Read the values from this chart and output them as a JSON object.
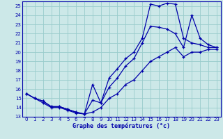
{
  "xlabel": "Graphe des températures (°c)",
  "bg_color": "#cce8e8",
  "grid_color": "#99cccc",
  "line_color": "#0000aa",
  "xlim": [
    -0.5,
    23.5
  ],
  "ylim": [
    13,
    25.5
  ],
  "yticks": [
    13,
    14,
    15,
    16,
    17,
    18,
    19,
    20,
    21,
    22,
    23,
    24,
    25
  ],
  "xticks": [
    0,
    1,
    2,
    3,
    4,
    5,
    6,
    7,
    8,
    9,
    10,
    11,
    12,
    13,
    14,
    15,
    16,
    17,
    18,
    19,
    20,
    21,
    22,
    23
  ],
  "curve1_x": [
    0,
    1,
    2,
    3,
    4,
    5,
    6,
    7,
    8,
    9,
    10,
    11,
    12,
    13,
    14,
    15,
    16,
    17,
    18,
    19,
    20,
    21,
    22,
    23
  ],
  "curve1_y": [
    15.5,
    15.0,
    14.7,
    14.1,
    14.1,
    13.8,
    13.5,
    13.3,
    16.5,
    14.5,
    17.2,
    18.2,
    19.3,
    20.0,
    21.5,
    25.2,
    25.0,
    25.3,
    25.2,
    21.5,
    21.0,
    20.8,
    20.5,
    20.5
  ],
  "curve2_x": [
    0,
    1,
    2,
    3,
    4,
    5,
    6,
    7,
    8,
    9,
    10,
    11,
    12,
    13,
    14,
    15,
    16,
    17,
    18,
    19,
    20,
    21,
    22,
    23
  ],
  "curve2_y": [
    15.5,
    15.0,
    14.7,
    14.1,
    14.1,
    13.8,
    13.5,
    13.3,
    14.8,
    14.5,
    16.2,
    17.2,
    18.5,
    19.3,
    21.0,
    22.8,
    22.7,
    22.5,
    22.0,
    20.5,
    24.0,
    21.5,
    20.8,
    20.5
  ],
  "curve3_x": [
    0,
    1,
    2,
    3,
    4,
    5,
    6,
    7,
    8,
    9,
    10,
    11,
    12,
    13,
    14,
    15,
    16,
    17,
    18,
    19,
    20,
    21,
    22,
    23
  ],
  "curve3_y": [
    15.5,
    15.0,
    14.5,
    14.0,
    14.0,
    13.7,
    13.4,
    13.3,
    13.5,
    14.0,
    15.0,
    15.5,
    16.5,
    17.0,
    18.0,
    19.0,
    19.5,
    20.0,
    20.5,
    19.5,
    20.0,
    20.0,
    20.3,
    20.3
  ]
}
